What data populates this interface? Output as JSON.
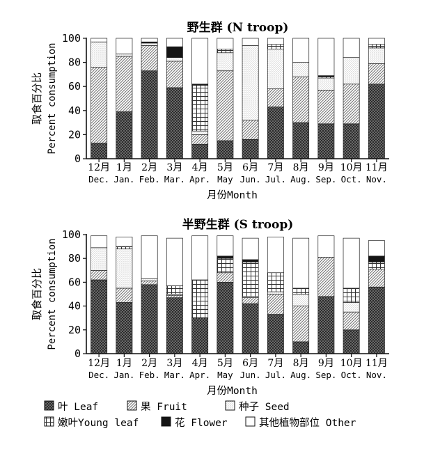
{
  "months_cn": [
    "12月",
    "1月",
    "2月",
    "3月",
    "4月",
    "5月",
    "6月",
    "7月",
    "8月",
    "9月",
    "10月",
    "11月"
  ],
  "months_en": [
    "Dec.",
    "Jan.",
    "Feb.",
    "Mar.",
    "Apr.",
    "May",
    "Jun.",
    "Jul.",
    "Aug.",
    "Sep.",
    "Oct.",
    "Nov."
  ],
  "y_label_cn": "取食百分比",
  "y_label_en": "Percent consumption",
  "x_title": "月份Month",
  "legend": [
    {
      "key": "leaf",
      "label": "叶 Leaf"
    },
    {
      "key": "fruit",
      "label": "果 Fruit"
    },
    {
      "key": "seed",
      "label": "种子 Seed"
    },
    {
      "key": "young",
      "label": "嫩叶Young leaf"
    },
    {
      "key": "flower",
      "label": "花 Flower"
    },
    {
      "key": "other",
      "label": "其他植物部位 Other"
    }
  ],
  "chart_data": [
    {
      "type": "bar",
      "stacked": true,
      "title_cn": "野生群",
      "title_en": "(N troop)",
      "categories": [
        "Dec.",
        "Jan.",
        "Feb.",
        "Mar.",
        "Apr.",
        "May",
        "Jun.",
        "Jul.",
        "Aug.",
        "Sep.",
        "Oct.",
        "Nov."
      ],
      "ylim": [
        0,
        100
      ],
      "yticks": [
        0,
        20,
        40,
        60,
        80,
        100
      ],
      "series": [
        {
          "key": "leaf",
          "name": "Leaf",
          "values": [
            13,
            39,
            73,
            59,
            12,
            15,
            16,
            43,
            30,
            29,
            29,
            62
          ]
        },
        {
          "key": "fruit",
          "name": "Fruit",
          "values": [
            63,
            46,
            21,
            22,
            8,
            58,
            16,
            15,
            38,
            28,
            33,
            17
          ]
        },
        {
          "key": "seed",
          "name": "Seed",
          "values": [
            21,
            2,
            2,
            3,
            3,
            15,
            62,
            33,
            12,
            10,
            22,
            13
          ]
        },
        {
          "key": "young",
          "name": "Young leaf",
          "values": [
            0,
            0,
            0,
            0,
            38,
            3,
            0,
            4,
            0,
            1,
            0,
            3
          ]
        },
        {
          "key": "flower",
          "name": "Flower",
          "values": [
            0,
            0,
            1,
            9,
            1,
            0,
            0,
            0,
            0,
            1,
            0,
            0
          ]
        },
        {
          "key": "other",
          "name": "Other",
          "values": [
            3,
            13,
            3,
            7,
            38,
            9,
            6,
            5,
            20,
            31,
            16,
            5
          ]
        }
      ]
    },
    {
      "type": "bar",
      "stacked": true,
      "title_cn": "半野生群",
      "title_en": "(S troop)",
      "categories": [
        "Dec.",
        "Jan.",
        "Feb.",
        "Mar.",
        "Apr.",
        "May",
        "Jun.",
        "Jul.",
        "Aug.",
        "Sep.",
        "Oct.",
        "Nov."
      ],
      "ylim": [
        0,
        100
      ],
      "yticks": [
        0,
        20,
        40,
        60,
        80,
        100
      ],
      "series": [
        {
          "key": "leaf",
          "name": "Leaf",
          "values": [
            62,
            43,
            58,
            47,
            30,
            60,
            42,
            33,
            10,
            48,
            20,
            56
          ]
        },
        {
          "key": "fruit",
          "name": "Fruit",
          "values": [
            8,
            12,
            3,
            2,
            0,
            8,
            5,
            17,
            30,
            33,
            15,
            15
          ]
        },
        {
          "key": "seed",
          "name": "Seed",
          "values": [
            19,
            33,
            2,
            1,
            0,
            0,
            1,
            2,
            10,
            0,
            8,
            0
          ]
        },
        {
          "key": "young",
          "name": "Young leaf",
          "values": [
            0,
            2,
            0,
            7,
            32,
            12,
            29,
            16,
            5,
            0,
            12,
            6
          ]
        },
        {
          "key": "flower",
          "name": "Flower",
          "values": [
            0,
            0,
            0,
            0,
            0,
            2,
            2,
            0,
            0,
            0,
            0,
            5
          ]
        },
        {
          "key": "other",
          "name": "Other",
          "values": [
            10,
            8,
            36,
            40,
            37,
            17,
            18,
            30,
            42,
            18,
            42,
            13
          ]
        }
      ]
    }
  ]
}
